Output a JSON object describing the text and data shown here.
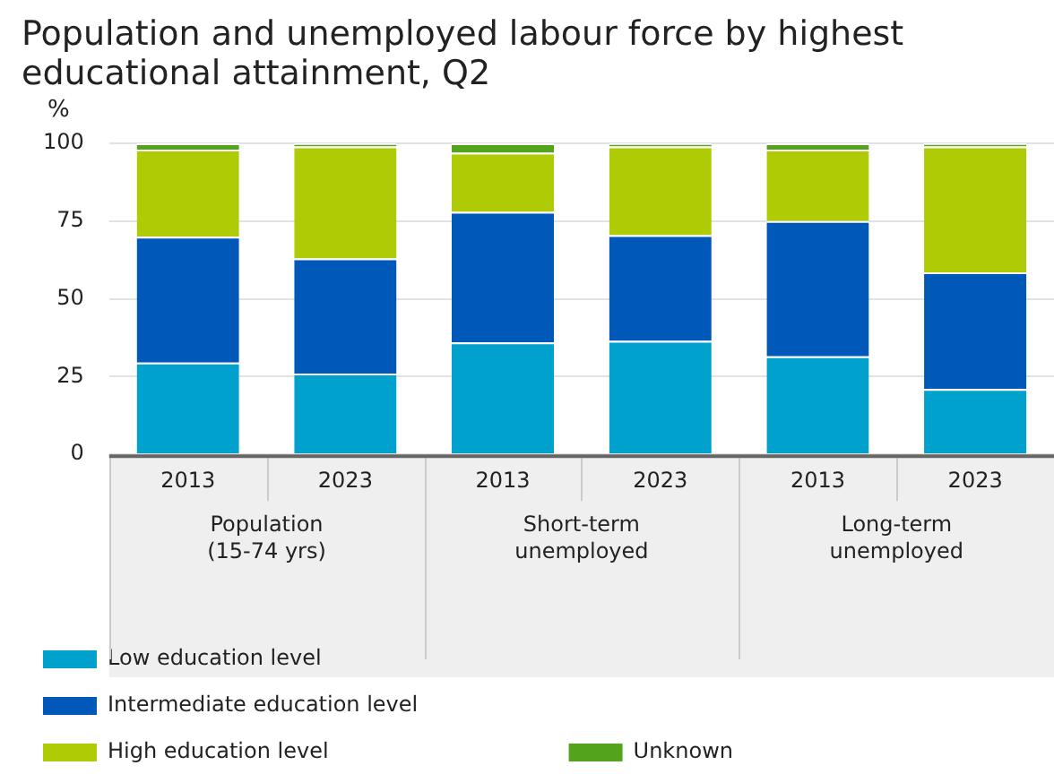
{
  "chart_data": {
    "type": "bar",
    "title": "Population and unemployed labour force by highest educational attainment, Q2",
    "ylabel": "%",
    "categories": [
      "2013",
      "2023",
      "2013",
      "2023",
      "2013",
      "2023"
    ],
    "annotations": [
      "Population (15-74 yrs)",
      "Short-term unemployed",
      "Long-term unemployed"
    ],
    "stacked": true,
    "ylim": [
      0,
      100
    ],
    "yticks": [
      0,
      25,
      50,
      75,
      100
    ],
    "grid": "y",
    "legend": "bottom",
    "series": [
      {
        "name": "Low education level",
        "color": "#00a1cd",
        "values": [
          29.5,
          26,
          36,
          36.5,
          31.5,
          21
        ]
      },
      {
        "name": "Intermediate education level",
        "color": "#0058b8",
        "values": [
          40.5,
          37,
          42,
          34,
          43.5,
          37.5
        ]
      },
      {
        "name": "High education level",
        "color": "#afcb05",
        "values": [
          28,
          36,
          19,
          28.5,
          23,
          40.5
        ]
      },
      {
        "name": "Unknown",
        "color": "#53a31d",
        "values": [
          2,
          1,
          3,
          1,
          2,
          1
        ]
      }
    ]
  }
}
